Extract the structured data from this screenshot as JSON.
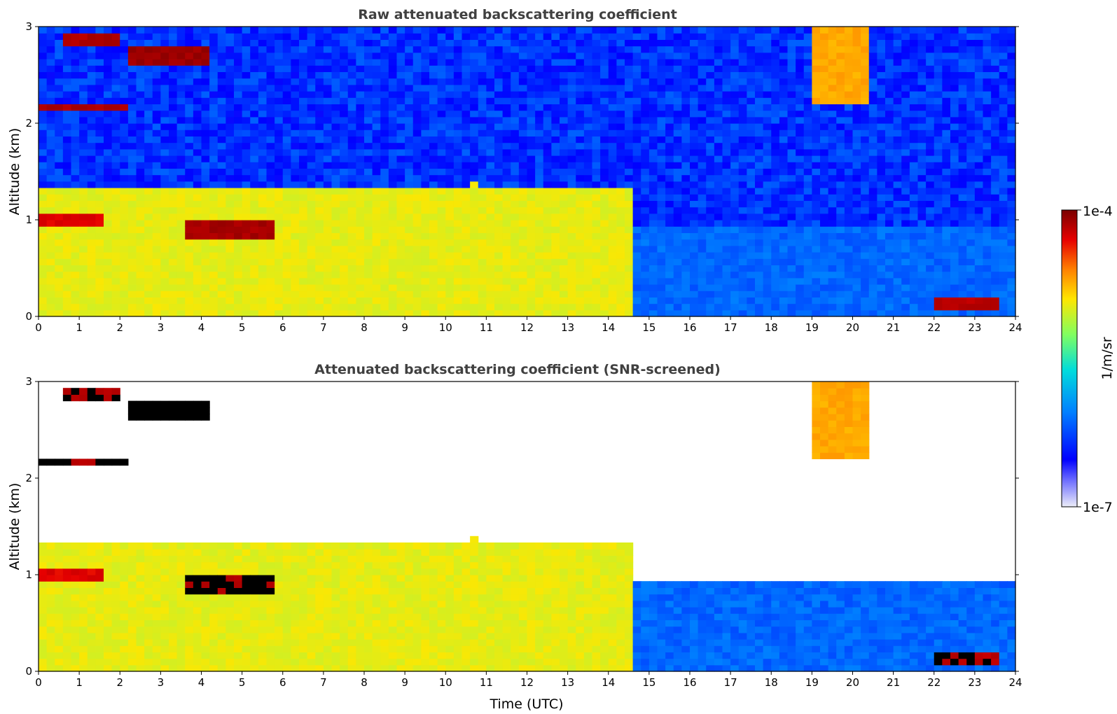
{
  "chart_data": [
    {
      "type": "heatmap",
      "title": "Raw attenuated backscattering coefficient",
      "xlabel": "",
      "ylabel": "Altitude (km)",
      "xlim": [
        0,
        24
      ],
      "ylim": [
        0,
        3
      ],
      "x_ticks": [
        "0",
        "1",
        "2",
        "3",
        "4",
        "5",
        "6",
        "7",
        "8",
        "9",
        "10",
        "11",
        "12",
        "13",
        "14",
        "15",
        "16",
        "17",
        "18",
        "19",
        "20",
        "21",
        "22",
        "23",
        "24"
      ],
      "y_ticks": [
        "0",
        "1",
        "2",
        "3"
      ],
      "screened": false,
      "features": [
        {
          "name": "aerosol boundary layer",
          "x": [
            0,
            14.6
          ],
          "y": [
            0,
            1.3
          ],
          "level": 0.62
        },
        {
          "name": "low cloud",
          "x": [
            0,
            1.6
          ],
          "y": [
            0.95,
            1.05
          ],
          "level": 0.9
        },
        {
          "name": "elevated cloud",
          "x": [
            0.1,
            2.1
          ],
          "y": [
            2.12,
            2.2
          ],
          "level": 0.96
        },
        {
          "name": "elevated cloud",
          "x": [
            0.6,
            2.0
          ],
          "y": [
            2.82,
            2.9
          ],
          "level": 0.96
        },
        {
          "name": "elevated cloud",
          "x": [
            2.2,
            4.1
          ],
          "y": [
            2.6,
            2.78
          ],
          "level": 0.98
        },
        {
          "name": "boundary-layer top cloud",
          "x": [
            3.6,
            5.8
          ],
          "y": [
            0.8,
            0.98
          ],
          "level": 0.97
        },
        {
          "name": "fall streaks",
          "x": [
            19.0,
            20.4
          ],
          "y": [
            2.2,
            3.0
          ],
          "level": 0.72
        },
        {
          "name": "near-surface cloud",
          "x": [
            22.0,
            23.5
          ],
          "y": [
            0.1,
            0.2
          ],
          "level": 0.95
        }
      ]
    },
    {
      "type": "heatmap",
      "title": "Attenuated backscattering coefficient (SNR-screened)",
      "xlabel": "Time (UTC)",
      "ylabel": "Altitude (km)",
      "xlim": [
        0,
        24
      ],
      "ylim": [
        0,
        3
      ],
      "x_ticks": [
        "0",
        "1",
        "2",
        "3",
        "4",
        "5",
        "6",
        "7",
        "8",
        "9",
        "10",
        "11",
        "12",
        "13",
        "14",
        "15",
        "16",
        "17",
        "18",
        "19",
        "20",
        "21",
        "22",
        "23",
        "24"
      ],
      "y_ticks": [
        "0",
        "1",
        "2",
        "3"
      ],
      "screened": true,
      "saturated_color": "#000000",
      "features": [
        {
          "name": "aerosol boundary layer",
          "x": [
            0,
            14.6
          ],
          "y": [
            0,
            1.3
          ],
          "level": 0.62
        },
        {
          "name": "low cloud",
          "x": [
            0,
            1.6
          ],
          "y": [
            0.95,
            1.05
          ],
          "level": 1.0
        },
        {
          "name": "elevated cloud",
          "x": [
            0.1,
            2.1
          ],
          "y": [
            2.12,
            2.2
          ],
          "level": 1.0
        },
        {
          "name": "elevated cloud",
          "x": [
            0.6,
            2.0
          ],
          "y": [
            2.82,
            2.9
          ],
          "level": 1.0
        },
        {
          "name": "elevated cloud",
          "x": [
            2.2,
            4.1
          ],
          "y": [
            2.6,
            2.78
          ],
          "level": 1.0
        },
        {
          "name": "boundary-layer top cloud",
          "x": [
            3.6,
            5.8
          ],
          "y": [
            0.8,
            0.98
          ],
          "level": 1.0
        },
        {
          "name": "fall streaks",
          "x": [
            19.0,
            20.4
          ],
          "y": [
            2.2,
            3.0
          ],
          "level": 0.72
        },
        {
          "name": "near-surface cloud",
          "x": [
            22.0,
            23.5
          ],
          "y": [
            0.1,
            0.2
          ],
          "level": 1.0
        }
      ]
    }
  ],
  "colorbar": {
    "label": "1/m/sr",
    "max_label": "1e-4",
    "min_label": "1e-7",
    "scale": "log",
    "colormap": [
      "#ecedf8",
      "#0000ff",
      "#0080ff",
      "#00dcdc",
      "#80ff60",
      "#ffe600",
      "#ff8000",
      "#e60000",
      "#7a0000"
    ]
  }
}
